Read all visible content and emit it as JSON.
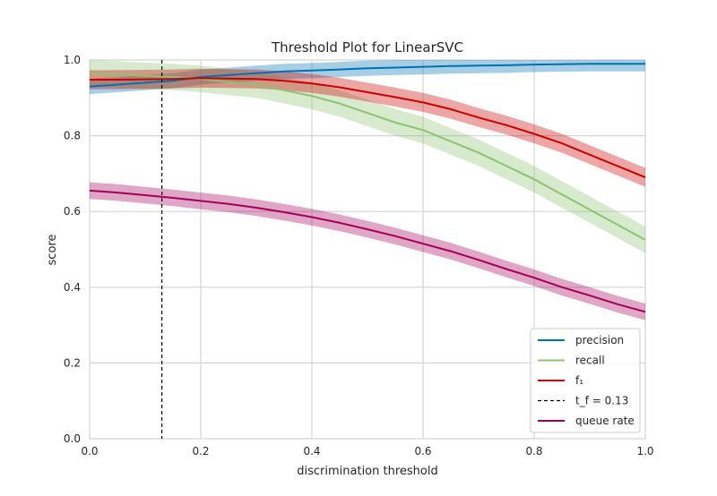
{
  "chart_data": {
    "type": "line",
    "title": "Threshold Plot for LinearSVC",
    "xlabel": "discrimination threshold",
    "ylabel": "score",
    "xlim": [
      0,
      1
    ],
    "ylim": [
      0,
      1
    ],
    "xticks": [
      "0.0",
      "0.2",
      "0.4",
      "0.6",
      "0.8",
      "1.0"
    ],
    "yticks": [
      "0.0",
      "0.2",
      "0.4",
      "0.6",
      "0.8",
      "1.0"
    ],
    "grid": true,
    "legend_position": "lower-right",
    "background_color": "#eaeaf2",
    "x": [
      0.0,
      0.05,
      0.1,
      0.15,
      0.2,
      0.25,
      0.3,
      0.35,
      0.4,
      0.45,
      0.5,
      0.55,
      0.6,
      0.65,
      0.7,
      0.75,
      0.8,
      0.85,
      0.9,
      0.95,
      1.0
    ],
    "series": [
      {
        "name": "precision",
        "color": "#0072b2",
        "values": [
          0.93,
          0.935,
          0.94,
          0.945,
          0.955,
          0.96,
          0.965,
          0.97,
          0.972,
          0.975,
          0.978,
          0.98,
          0.982,
          0.984,
          0.985,
          0.986,
          0.988,
          0.989,
          0.99,
          0.99,
          0.99
        ],
        "band": 0.02
      },
      {
        "name": "recall",
        "color": "#8dc26f",
        "values": [
          0.965,
          0.962,
          0.958,
          0.955,
          0.95,
          0.942,
          0.935,
          0.92,
          0.905,
          0.885,
          0.86,
          0.835,
          0.815,
          0.785,
          0.755,
          0.72,
          0.685,
          0.645,
          0.605,
          0.565,
          0.525
        ],
        "band": 0.035
      },
      {
        "name": "f₁",
        "color": "#cc0000",
        "values": [
          0.948,
          0.948,
          0.949,
          0.95,
          0.952,
          0.951,
          0.95,
          0.945,
          0.938,
          0.928,
          0.915,
          0.902,
          0.888,
          0.87,
          0.848,
          0.828,
          0.805,
          0.78,
          0.75,
          0.72,
          0.69
        ],
        "band": 0.025
      },
      {
        "name": "queue rate",
        "color": "#a4005b",
        "values": [
          0.655,
          0.65,
          0.643,
          0.636,
          0.628,
          0.62,
          0.61,
          0.598,
          0.585,
          0.57,
          0.553,
          0.535,
          0.515,
          0.495,
          0.472,
          0.448,
          0.425,
          0.4,
          0.378,
          0.355,
          0.335
        ],
        "band": 0.022
      }
    ],
    "threshold": {
      "label": "t_f = 0.13",
      "value": 0.13,
      "color": "#000000"
    },
    "legend": [
      {
        "label": "precision",
        "color": "#0072b2",
        "style": "solid"
      },
      {
        "label": "recall",
        "color": "#8dc26f",
        "style": "solid"
      },
      {
        "label": "f₁",
        "color": "#cc0000",
        "style": "solid"
      },
      {
        "label": "t_f = 0.13",
        "color": "#000000",
        "style": "dashed"
      },
      {
        "label": "queue rate",
        "color": "#a4005b",
        "style": "solid"
      }
    ]
  }
}
